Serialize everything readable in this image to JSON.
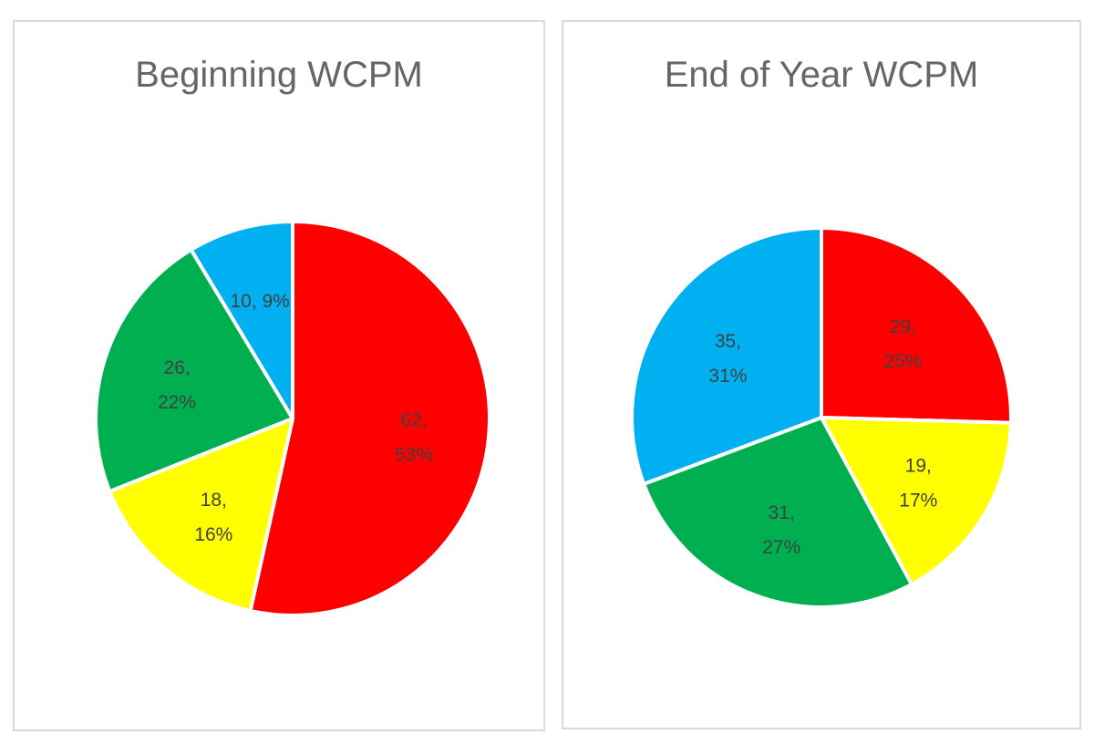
{
  "chart_data": [
    {
      "type": "pie",
      "title": "Beginning WCPM",
      "slices": [
        {
          "value": 62,
          "label_line1": "62,",
          "label_line2": "53%",
          "color": "#ff0000"
        },
        {
          "value": 18,
          "label_line1": "18,",
          "label_line2": "16%",
          "color": "#ffff00"
        },
        {
          "value": 26,
          "label_line1": "26,",
          "label_line2": "22%",
          "color": "#00b050"
        },
        {
          "value": 10,
          "label_line1": "10, 9%",
          "label_line2": "",
          "color": "#00b0f0"
        }
      ]
    },
    {
      "type": "pie",
      "title": "End of Year WCPM",
      "slices": [
        {
          "value": 29,
          "label_line1": "29,",
          "label_line2": "25%",
          "color": "#ff0000"
        },
        {
          "value": 19,
          "label_line1": "19,",
          "label_line2": "17%",
          "color": "#ffff00"
        },
        {
          "value": 31,
          "label_line1": "31,",
          "label_line2": "27%",
          "color": "#00b050"
        },
        {
          "value": 35,
          "label_line1": "35,",
          "label_line2": "31%",
          "color": "#00b0f0"
        }
      ]
    }
  ]
}
